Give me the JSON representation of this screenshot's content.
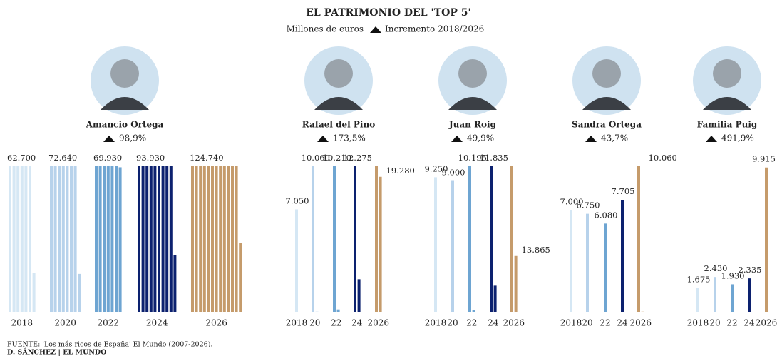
{
  "chart_data": {
    "type": "unit-bar",
    "title": "EL PATRIMONIO DEL 'TOP 5'",
    "subtitle": "Millones de euros",
    "legend": "Incremento 2018/2026",
    "ylim": [
      0,
      10000
    ],
    "colors": [
      "#d5e7f4",
      "#b7d2eb",
      "#6ea5d2",
      "#0c216f",
      "#c59b6b"
    ],
    "panels": [
      {
        "name": "Amancio Ortega",
        "increment": {
          "value": 98.9,
          "label": "98,9%"
        },
        "categories": [
          "2018",
          "2020",
          "2022",
          "2024",
          "2026"
        ],
        "values": [
          62700,
          72640,
          69930,
          93930,
          124740
        ],
        "value_labels": [
          "62.700",
          "72.640",
          "69.930",
          "93.930",
          "124.740"
        ]
      },
      {
        "name": "Rafael del Pino",
        "increment": {
          "value": 173.5,
          "label": "173,5%"
        },
        "categories": [
          "2018",
          "20",
          "22",
          "24",
          "2026"
        ],
        "values": [
          7050,
          10060,
          10210,
          12275,
          19280
        ],
        "value_labels": [
          "7.050",
          "10.060",
          "10.210",
          "12.275",
          "19.280"
        ]
      },
      {
        "name": "Juan Roig",
        "increment": {
          "value": 49.9,
          "label": "49,9%"
        },
        "categories": [
          "2018",
          "20",
          "22",
          "24",
          "2026"
        ],
        "values": [
          9250,
          9000,
          10195,
          11835,
          13865
        ],
        "value_labels": [
          "9.250",
          "9.000",
          "10.195",
          "11.835",
          "13.865"
        ]
      },
      {
        "name": "Sandra Ortega",
        "increment": {
          "value": 43.7,
          "label": "43,7%"
        },
        "categories": [
          "2018",
          "20",
          "22",
          "24",
          "2026"
        ],
        "values": [
          7000,
          6750,
          6080,
          7705,
          10060
        ],
        "value_labels": [
          "7.000",
          "6.750",
          "6.080",
          "7.705",
          "10.060"
        ]
      },
      {
        "name": "Familia Puig",
        "increment": {
          "value": 491.9,
          "label": "491,9%"
        },
        "categories": [
          "2018",
          "20",
          "22",
          "24",
          "2026"
        ],
        "values": [
          1675,
          2430,
          1930,
          2335,
          9915
        ],
        "value_labels": [
          "1.675",
          "2.430",
          "1.930",
          "2.335",
          "9.915"
        ]
      }
    ],
    "source": "FUENTE: 'Los más ricos de España' El Mundo (2007-2026).",
    "credit": "D. SÁNCHEZ | EL MUNDO"
  }
}
